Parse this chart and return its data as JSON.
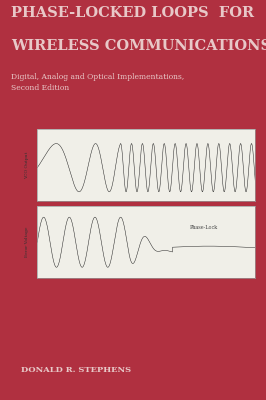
{
  "bg_color": "#b03040",
  "title_line1": "PHASE-LOCKED LOOPS  FOR",
  "title_line2": "WIRELESS COMMUNICATIONS",
  "subtitle": "Digital, Analog and Optical Implementations,\nSecond Edition",
  "author": "DONALD R. STEPHENS",
  "title_color": "#e8c8c8",
  "subtitle_color": "#e8c8c8",
  "author_color": "#e8c8c8",
  "plot_bg": "#f0efe8",
  "plot_line_color": "#222222",
  "label_vco": "VCO Output",
  "label_error": "Error Voltage",
  "label_phaselock": "Phase-Lock"
}
